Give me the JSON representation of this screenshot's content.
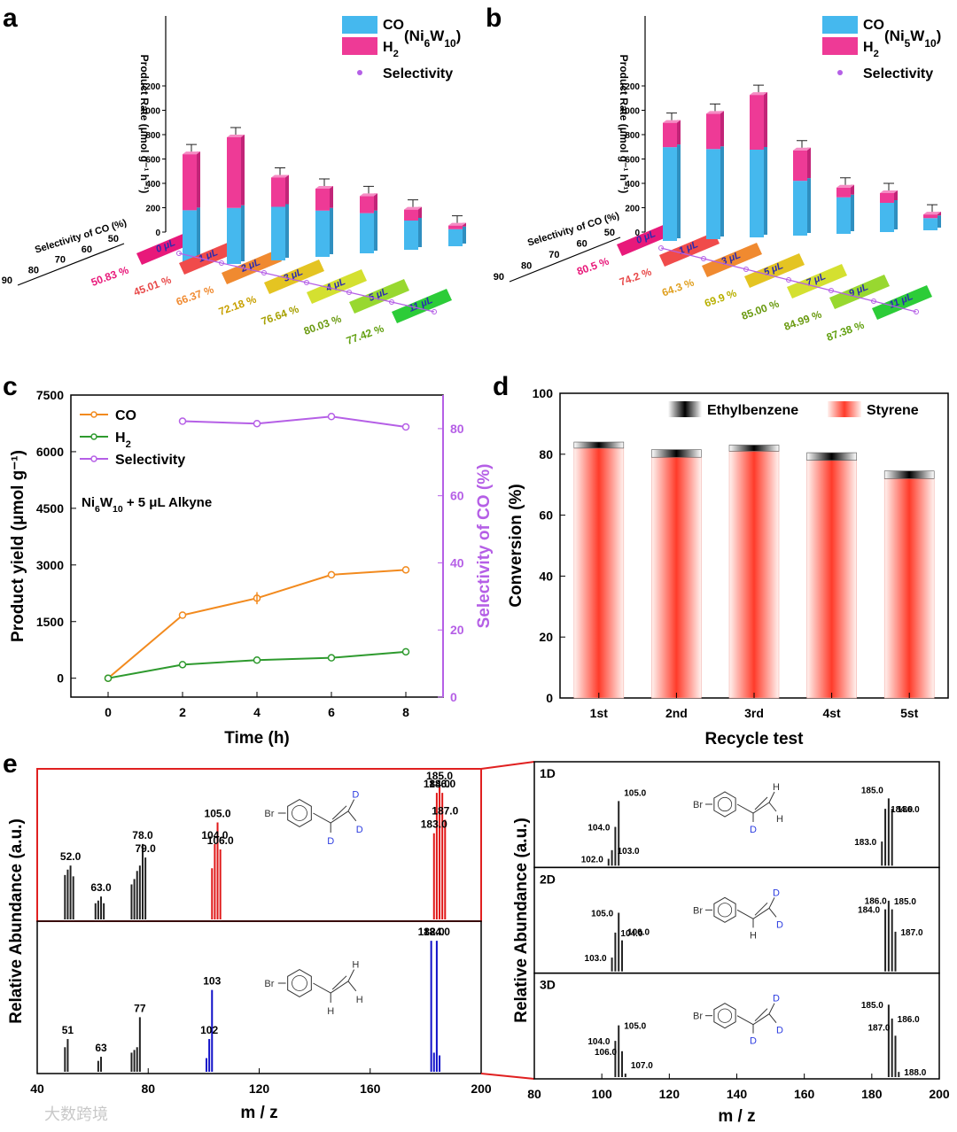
{
  "panels": {
    "a": {
      "label": "a"
    },
    "b": {
      "label": "b"
    },
    "c": {
      "label": "c"
    },
    "d": {
      "label": "d"
    },
    "e": {
      "label": "e"
    }
  },
  "chart_data": [
    {
      "panel": "a",
      "type": "bar",
      "stacked": true,
      "legend": {
        "co": "CO",
        "h2": "H",
        "h2_sub": "2",
        "catalyst": "(Ni",
        "cat_sub1": "6",
        "cat_mid": "W",
        "cat_sub2": "10",
        "cat_end": ")",
        "selectivity": "Selectivity"
      },
      "zlabel": "Product Rate (μmol g⁻¹ h⁻¹)",
      "selectivity_axis_label": "Selectivity of CO (%)",
      "zticks": [
        "0",
        "200",
        "400",
        "600",
        "800",
        "1000",
        "1200"
      ],
      "selticks": [
        "50",
        "60",
        "70",
        "80",
        "90"
      ],
      "categories": [
        "0 μL",
        "1 μL",
        "2 μL",
        "3 μL",
        "4 μL",
        "5 μL",
        "11 μL"
      ],
      "series": [
        {
          "name": "CO",
          "values": [
            470,
            460,
            440,
            380,
            330,
            240,
            140
          ]
        },
        {
          "name": "H2",
          "values": [
            460,
            580,
            240,
            180,
            140,
            90,
            30
          ]
        }
      ],
      "selectivity": [
        "50.83 %",
        "45.01 %",
        "66.37 %",
        "72.18 %",
        "76.64 %",
        "80.03 %",
        "77.42 %"
      ],
      "strip_colors": [
        "#e8197a",
        "#f04b4b",
        "#f08a30",
        "#e4c422",
        "#d4e030",
        "#98d830",
        "#2ccc38"
      ],
      "sel_colors": [
        "#e8197a",
        "#e84a4a",
        "#f08a30",
        "#c8a000",
        "#a6a000",
        "#6a9a10",
        "#62a010"
      ]
    },
    {
      "panel": "b",
      "type": "bar",
      "stacked": true,
      "legend": {
        "co": "CO",
        "h2": "H",
        "h2_sub": "2",
        "catalyst": "(Ni",
        "cat_sub1": "5",
        "cat_mid": "W",
        "cat_sub2": "10",
        "cat_end": ")",
        "selectivity": "Selectivity"
      },
      "zlabel": "Product Rate (μmol g⁻¹ h⁻¹)",
      "selectivity_axis_label": "Selectivity of CO (%)",
      "zticks": [
        "0",
        "200",
        "400",
        "600",
        "800",
        "1000",
        "1200"
      ],
      "selticks": [
        "50",
        "60",
        "70",
        "80",
        "90"
      ],
      "categories": [
        "0 μL",
        "1 μL",
        "3 μL",
        "5 μL",
        "7 μL",
        "9 μL",
        "11 μL"
      ],
      "series": [
        {
          "name": "CO",
          "values": [
            770,
            740,
            720,
            450,
            300,
            240,
            100
          ]
        },
        {
          "name": "H2",
          "values": [
            200,
            290,
            450,
            250,
            80,
            80,
            30
          ]
        }
      ],
      "selectivity": [
        "80.5 %",
        "74.2 %",
        "64.3 %",
        "69.9 %",
        "85.00 %",
        "84.99 %",
        "87.38 %"
      ],
      "strip_colors": [
        "#e8197a",
        "#f04b4b",
        "#f08a30",
        "#e4c422",
        "#d4e030",
        "#98d830",
        "#2ccc38"
      ],
      "sel_colors": [
        "#e8197a",
        "#e84a4a",
        "#e0a020",
        "#b8b000",
        "#6a9a10",
        "#6a9a10",
        "#62a010"
      ]
    },
    {
      "panel": "c",
      "type": "line",
      "xlabel": "Time (h)",
      "ylabel": "Product yield (μmol g⁻¹)",
      "y2label": "Selectivity of CO (%)",
      "annotation": {
        "a": "Ni",
        "s1": "6",
        "b": "W",
        "s2": "10",
        "c": " + 5 μL Alkyne"
      },
      "x": [
        0,
        2,
        4,
        6,
        8
      ],
      "xlim": [
        -1,
        9
      ],
      "ylim": [
        -500,
        7500
      ],
      "y2lim": [
        0,
        90
      ],
      "yticks": [
        "0",
        "1500",
        "3000",
        "4500",
        "6000",
        "7500"
      ],
      "y2ticks": [
        "0",
        "20",
        "40",
        "60",
        "80"
      ],
      "xticks": [
        "0",
        "2",
        "4",
        "6",
        "8"
      ],
      "series": [
        {
          "name": "CO",
          "values": [
            0,
            1670,
            2120,
            2740,
            2870
          ],
          "color": "#f28a1e"
        },
        {
          "name": "H",
          "sub": "2",
          "values": [
            0,
            360,
            480,
            540,
            700
          ],
          "color": "#2e9a2e"
        },
        {
          "name": "Selectivity",
          "x": [
            2,
            4,
            6,
            8
          ],
          "values": [
            82.2,
            81.5,
            83.6,
            80.5
          ],
          "color": "#b55fe6",
          "axis": "right"
        }
      ]
    },
    {
      "panel": "d",
      "type": "bar",
      "stacked": true,
      "xlabel": "Recycle test",
      "ylabel": "Conversion (%)",
      "ylim": [
        0,
        100
      ],
      "yticks": [
        "0",
        "20",
        "40",
        "60",
        "80",
        "100"
      ],
      "categories": [
        "1st",
        "2nd",
        "3rd",
        "4st",
        "5st"
      ],
      "series": [
        {
          "name": "Styrene",
          "values": [
            82,
            79,
            81,
            78,
            72
          ]
        },
        {
          "name": "Ethylbenzene",
          "values": [
            2,
            2.5,
            2,
            2.5,
            2.5
          ]
        }
      ]
    },
    {
      "panel": "e-left",
      "type": "bar",
      "xlabel": "m / z",
      "ylabel": "Relative Abundance (a.u.)",
      "xlim": [
        40,
        200
      ],
      "xticks": [
        "40",
        "80",
        "120",
        "160",
        "200"
      ],
      "top_peaks": [
        {
          "mz": 50,
          "h": 0.33
        },
        {
          "mz": 51,
          "h": 0.37
        },
        {
          "mz": 52,
          "h": 0.4
        },
        {
          "mz": 53,
          "h": 0.32
        },
        {
          "mz": 61,
          "h": 0.12
        },
        {
          "mz": 62,
          "h": 0.14
        },
        {
          "mz": 63,
          "h": 0.17
        },
        {
          "mz": 64,
          "h": 0.12
        },
        {
          "mz": 74,
          "h": 0.26
        },
        {
          "mz": 75,
          "h": 0.3
        },
        {
          "mz": 76,
          "h": 0.36
        },
        {
          "mz": 77,
          "h": 0.4
        },
        {
          "mz": 78,
          "h": 0.56
        },
        {
          "mz": 79,
          "h": 0.46
        },
        {
          "mz": 103,
          "h": 0.38
        },
        {
          "mz": 104,
          "h": 0.56
        },
        {
          "mz": 105,
          "h": 0.72
        },
        {
          "mz": 106,
          "h": 0.52
        },
        {
          "mz": 183,
          "h": 0.64
        },
        {
          "mz": 184,
          "h": 0.94
        },
        {
          "mz": 185,
          "h": 1.0
        },
        {
          "mz": 186,
          "h": 0.94
        },
        {
          "mz": 187,
          "h": 0.74
        }
      ],
      "top_labels": [
        {
          "mz": 52,
          "text": "52.0"
        },
        {
          "mz": 63,
          "text": "63.0"
        },
        {
          "mz": 78,
          "text": "78.0"
        },
        {
          "mz": 79,
          "text": "79.0"
        },
        {
          "mz": 104,
          "text": "104.0"
        },
        {
          "mz": 105,
          "text": "105.0"
        },
        {
          "mz": 106,
          "text": "106.0"
        },
        {
          "mz": 183,
          "text": "183.0"
        },
        {
          "mz": 184,
          "text": "184.0"
        },
        {
          "mz": 185,
          "text": "185.0"
        },
        {
          "mz": 186,
          "text": "186.0"
        },
        {
          "mz": 187,
          "text": "187.0"
        }
      ],
      "bottom_peaks": [
        {
          "mz": 50,
          "h": 0.18
        },
        {
          "mz": 51,
          "h": 0.24
        },
        {
          "mz": 62,
          "h": 0.08
        },
        {
          "mz": 63,
          "h": 0.11
        },
        {
          "mz": 74,
          "h": 0.14
        },
        {
          "mz": 75,
          "h": 0.16
        },
        {
          "mz": 76,
          "h": 0.18
        },
        {
          "mz": 77,
          "h": 0.4
        },
        {
          "mz": 101,
          "h": 0.1
        },
        {
          "mz": 102,
          "h": 0.24
        },
        {
          "mz": 103,
          "h": 0.6
        },
        {
          "mz": 182,
          "h": 0.96
        },
        {
          "mz": 183,
          "h": 0.14
        },
        {
          "mz": 184,
          "h": 0.96
        },
        {
          "mz": 185,
          "h": 0.12
        }
      ],
      "bottom_labels": [
        {
          "mz": 51,
          "text": "51"
        },
        {
          "mz": 63,
          "text": "63"
        },
        {
          "mz": 77,
          "text": "77"
        },
        {
          "mz": 102,
          "text": "102"
        },
        {
          "mz": 103,
          "text": "103"
        },
        {
          "mz": 182,
          "text": "182.0"
        },
        {
          "mz": 184,
          "text": "184.0"
        }
      ],
      "top_mol_labels": [
        "Br",
        "D",
        "D",
        "D"
      ],
      "bottom_mol_labels": [
        "Br",
        "H",
        "H",
        "H"
      ]
    },
    {
      "panel": "e-right",
      "type": "bar",
      "xlabel": "m / z",
      "ylabel": "Relative Abundance (a.u.)",
      "xlim": [
        80,
        200
      ],
      "xticks": [
        "80",
        "100",
        "120",
        "140",
        "160",
        "180",
        "200"
      ],
      "subpanels": [
        {
          "label": "1D",
          "mol": [
            "Br",
            "D",
            "H",
            "H"
          ],
          "peaks": [
            {
              "mz": 102,
              "h": 0.08
            },
            {
              "mz": 103,
              "h": 0.18
            },
            {
              "mz": 104,
              "h": 0.45
            },
            {
              "mz": 105,
              "h": 0.75
            },
            {
              "mz": 183,
              "h": 0.28
            },
            {
              "mz": 184,
              "h": 0.66
            },
            {
              "mz": 185,
              "h": 0.78
            },
            {
              "mz": 186,
              "h": 0.66
            }
          ],
          "labels": [
            "102.0",
            "103.0",
            "104.0",
            "105.0",
            "183.0",
            "184.0",
            "185.0",
            "186.0"
          ]
        },
        {
          "label": "2D",
          "mol": [
            "Br",
            "H",
            "D",
            "D"
          ],
          "peaks": [
            {
              "mz": 103,
              "h": 0.16
            },
            {
              "mz": 104,
              "h": 0.45
            },
            {
              "mz": 105,
              "h": 0.68
            },
            {
              "mz": 106,
              "h": 0.36
            },
            {
              "mz": 184,
              "h": 0.72
            },
            {
              "mz": 185,
              "h": 0.82
            },
            {
              "mz": 186,
              "h": 0.72
            },
            {
              "mz": 187,
              "h": 0.46
            }
          ],
          "labels": [
            "103.0",
            "104.0",
            "105.0",
            "106.0",
            "184.0",
            "185.0",
            "186.0",
            "187.0"
          ]
        },
        {
          "label": "3D",
          "mol": [
            "Br",
            "D",
            "D",
            "D"
          ],
          "peaks": [
            {
              "mz": 104,
              "h": 0.42
            },
            {
              "mz": 105,
              "h": 0.6
            },
            {
              "mz": 106,
              "h": 0.3
            },
            {
              "mz": 107,
              "h": 0.04
            },
            {
              "mz": 185,
              "h": 0.84
            },
            {
              "mz": 186,
              "h": 0.68
            },
            {
              "mz": 187,
              "h": 0.48
            },
            {
              "mz": 188,
              "h": 0.06
            }
          ],
          "labels": [
            "104.0",
            "105.0",
            "106.0",
            "107.0",
            "185.0",
            "186.0",
            "187.0",
            "188.0"
          ]
        }
      ]
    }
  ],
  "watermark": "大数跨境",
  "colors": {
    "co_bar": "#45b8ee",
    "h2_bar": "#ee3a96",
    "sel": "#b55fe6",
    "red_frame": "#e02020",
    "blue_peak": "#1010c8",
    "red_peak": "#e01818",
    "label_green": "#2aaa2a",
    "mol_blue": "#2a3ae0"
  }
}
